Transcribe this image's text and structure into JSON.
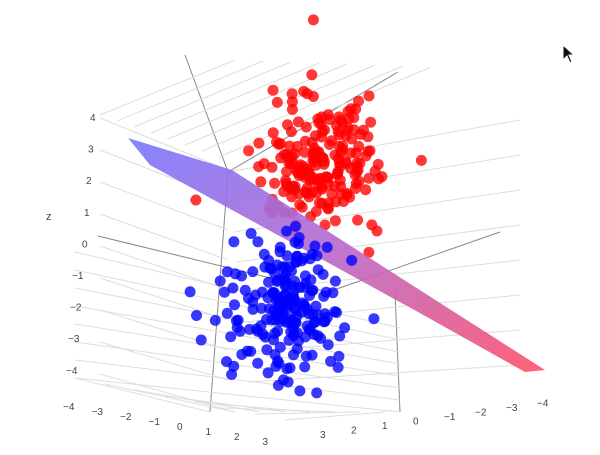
{
  "chart_data": {
    "type": "scatter3d",
    "title": "",
    "axes": {
      "z": {
        "label": "z",
        "ticks": [
          "4",
          "3",
          "2",
          "1",
          "0",
          "−1",
          "−2",
          "−3",
          "−4"
        ],
        "range": [
          -4,
          4
        ]
      },
      "x": {
        "label": "",
        "ticks": [
          "−4",
          "−3",
          "−2",
          "−1",
          "0",
          "1",
          "2",
          "3"
        ],
        "range": [
          -4,
          3
        ]
      },
      "y": {
        "label": "",
        "ticks": [
          "3",
          "2",
          "1",
          "0",
          "−1",
          "−2",
          "−3",
          "−4"
        ],
        "range": [
          -4,
          3
        ]
      }
    },
    "grid": true,
    "legend": "none",
    "series": [
      {
        "color": "#ff0000",
        "cluster_center": [
          1.5,
          -1.5,
          2.0
        ],
        "cluster_spread": 0.9,
        "point_count": 200
      },
      {
        "color": "#0000ff",
        "cluster_center": [
          -1.5,
          1.5,
          -2.0
        ],
        "cluster_spread": 0.9,
        "point_count": 200
      }
    ],
    "surface": {
      "kind": "separating plane",
      "colorscale": [
        "#7a7aff",
        "#ff5a6e"
      ]
    }
  },
  "colors": {
    "red_points": "#ff0000",
    "blue_points": "#0000ff",
    "grid": "#dddddd",
    "background": "#ffffff"
  },
  "icons": {
    "cursor": "mouse-pointer-icon"
  }
}
